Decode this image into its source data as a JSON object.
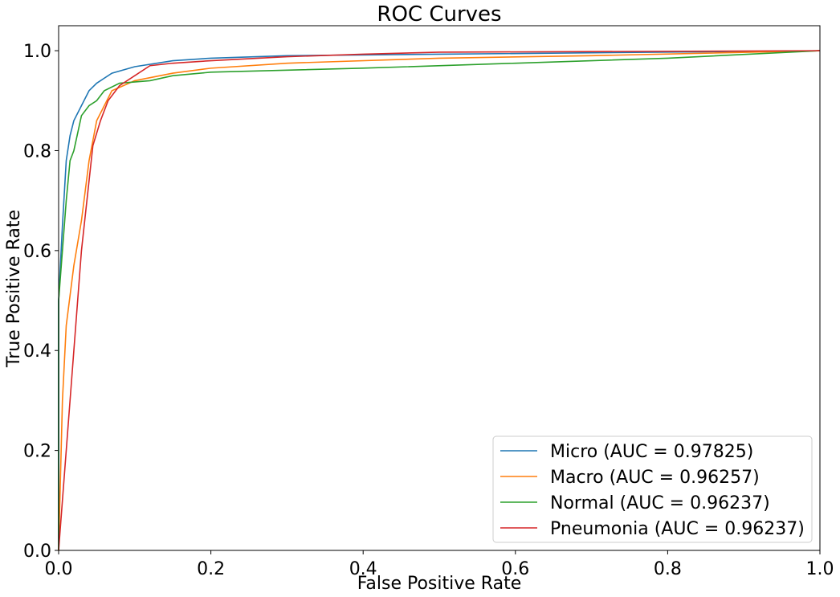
{
  "chart_data": {
    "type": "line",
    "title": "ROC Curves",
    "x_label": "False Positive Rate",
    "y_label": "True Positive Rate",
    "xlim": [
      0,
      1
    ],
    "ylim": [
      0,
      1.05
    ],
    "xticks": [
      {
        "value": 0,
        "label": "0.0"
      },
      0.2,
      0.4,
      0.6,
      0.8,
      {
        "value": 1,
        "label": "1.0"
      }
    ],
    "yticks": [
      {
        "value": 0,
        "label": "0.0"
      },
      0.2,
      0.4,
      0.6,
      0.8,
      {
        "value": 1,
        "label": "1.0"
      }
    ],
    "grid": false,
    "legend": "lower right",
    "series": [
      {
        "name": "Micro (AUC = 0.97825)",
        "color": "#1f77b4",
        "x": [
          0,
          0,
          0.005,
          0.01,
          0.015,
          0.02,
          0.03,
          0.04,
          0.05,
          0.07,
          0.1,
          0.15,
          0.2,
          0.3,
          0.5,
          1
        ],
        "values": [
          0,
          0.5,
          0.65,
          0.78,
          0.83,
          0.86,
          0.89,
          0.92,
          0.935,
          0.955,
          0.968,
          0.98,
          0.985,
          0.99,
          0.993,
          1
        ]
      },
      {
        "name": "Macro (AUC = 0.96257)",
        "color": "#ff7f0e",
        "x": [
          0,
          0.005,
          0.01,
          0.02,
          0.03,
          0.04,
          0.05,
          0.07,
          0.1,
          0.15,
          0.2,
          0.3,
          0.5,
          0.7,
          1
        ],
        "values": [
          0,
          0.3,
          0.45,
          0.57,
          0.66,
          0.78,
          0.86,
          0.92,
          0.94,
          0.955,
          0.965,
          0.975,
          0.985,
          0.99,
          1
        ]
      },
      {
        "name": "Normal (AUC = 0.96237)",
        "color": "#2ca02c",
        "x": [
          0,
          0,
          0.005,
          0.01,
          0.015,
          0.02,
          0.03,
          0.04,
          0.05,
          0.06,
          0.08,
          0.12,
          0.15,
          0.2,
          0.4,
          0.6,
          0.8,
          1
        ],
        "values": [
          0,
          0.5,
          0.6,
          0.7,
          0.78,
          0.8,
          0.87,
          0.89,
          0.9,
          0.92,
          0.935,
          0.94,
          0.95,
          0.957,
          0.965,
          0.975,
          0.985,
          1
        ]
      },
      {
        "name": "Pneumonia (AUC = 0.96237)",
        "color": "#d62728",
        "x": [
          0,
          0.03,
          0.045,
          0.055,
          0.065,
          0.08,
          0.1,
          0.12,
          0.15,
          0.2,
          0.3,
          0.4,
          0.5,
          1
        ],
        "values": [
          0,
          0.6,
          0.81,
          0.86,
          0.9,
          0.93,
          0.95,
          0.97,
          0.975,
          0.98,
          0.988,
          0.993,
          0.997,
          1
        ]
      }
    ]
  }
}
